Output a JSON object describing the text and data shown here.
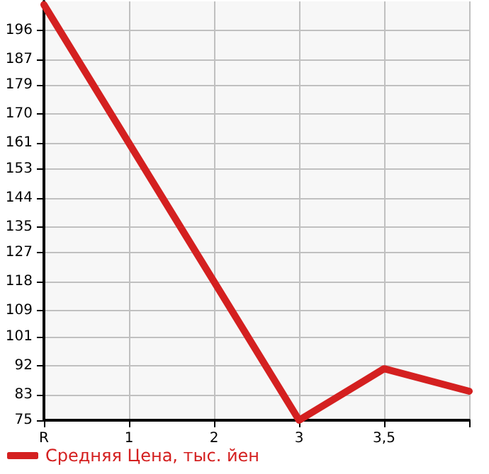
{
  "chart_data": {
    "type": "line",
    "categories": [
      "R",
      "1",
      "2",
      "3",
      "3,5",
      null
    ],
    "series": [
      {
        "name": "Средняя Цена, тыс. йен",
        "color": "#d42020",
        "values": [
          204,
          161,
          118,
          75,
          91,
          84
        ]
      }
    ],
    "ylim": [
      75,
      205
    ],
    "yticks": [
      75,
      83,
      92,
      101,
      109,
      118,
      127,
      135,
      144,
      153,
      161,
      170,
      179,
      187,
      196
    ],
    "grid": true,
    "legend": "bottom left",
    "marker": "none",
    "line_style": "solid"
  }
}
